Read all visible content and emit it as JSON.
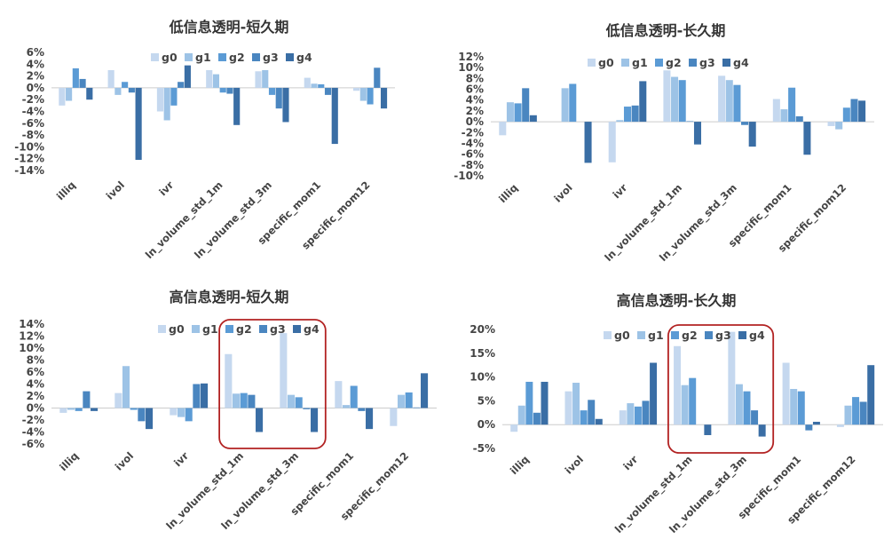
{
  "chart_data": [
    {
      "type": "bar",
      "title": "低信息透明-短久期",
      "categories": [
        "illiq",
        "ivol",
        "ivr",
        "ln_volume_std_1m",
        "ln_volume_std_3m",
        "specific_mom1",
        "specific_mom12"
      ],
      "series": [
        {
          "name": "g0",
          "values": [
            -3.0,
            3.0,
            -4.0,
            3.0,
            2.8,
            1.7,
            -0.5
          ]
        },
        {
          "name": "g1",
          "values": [
            -2.2,
            -1.2,
            -5.5,
            2.3,
            3.0,
            0.7,
            -2.2
          ]
        },
        {
          "name": "g2",
          "values": [
            3.3,
            1.0,
            -3.0,
            -0.8,
            -1.2,
            0.6,
            -2.8
          ]
        },
        {
          "name": "g3",
          "values": [
            1.5,
            -0.8,
            1.0,
            -1.0,
            -3.5,
            -1.2,
            3.4
          ]
        },
        {
          "name": "g4",
          "values": [
            -2.0,
            -12.2,
            3.8,
            -6.3,
            -5.8,
            -9.5,
            -3.5
          ]
        }
      ],
      "ylim": [
        -14,
        6
      ],
      "yticks": [
        6,
        4,
        2,
        0,
        -2,
        -4,
        -6,
        -8,
        -10,
        -12,
        -14
      ],
      "ytick_labels": [
        "6%",
        "4%",
        "2%",
        "0%",
        "-2%",
        "-4%",
        "-6%",
        "-8%",
        "-10%",
        "-12%",
        "-14%"
      ],
      "legend": "top-center"
    },
    {
      "type": "bar",
      "title": "低信息透明-长久期",
      "categories": [
        "illiq",
        "ivol",
        "ivr",
        "ln_volume_std_1m",
        "ln_volume_std_3m",
        "specific_mom1",
        "specific_mom12"
      ],
      "series": [
        {
          "name": "g0",
          "values": [
            -2.5,
            0.0,
            -7.5,
            9.5,
            8.5,
            4.2,
            -0.8
          ]
        },
        {
          "name": "g1",
          "values": [
            3.6,
            6.2,
            0.3,
            8.3,
            7.7,
            2.3,
            -1.4
          ]
        },
        {
          "name": "g2",
          "values": [
            3.4,
            7.0,
            2.8,
            7.7,
            6.8,
            6.3,
            2.6
          ]
        },
        {
          "name": "g3",
          "values": [
            6.2,
            0.0,
            3.0,
            0.1,
            -0.6,
            1.0,
            4.2
          ]
        },
        {
          "name": "g4",
          "values": [
            1.2,
            -7.6,
            7.5,
            -4.2,
            -4.6,
            -6.1,
            3.9
          ]
        }
      ],
      "ylim": [
        -10,
        12
      ],
      "yticks": [
        12,
        10,
        8,
        6,
        4,
        2,
        0,
        -2,
        -4,
        -6,
        -8,
        -10
      ],
      "ytick_labels": [
        "12%",
        "10%",
        "8%",
        "6%",
        "4%",
        "2%",
        "0%",
        "-2%",
        "-4%",
        "-6%",
        "-8%",
        "-10%"
      ],
      "legend": "top-center"
    },
    {
      "type": "bar",
      "title": "高信息透明-短久期",
      "categories": [
        "illiq",
        "ivol",
        "ivr",
        "ln_volume_std_1m",
        "ln_volume_std_3m",
        "specific_mom1",
        "specific_mom12"
      ],
      "series": [
        {
          "name": "g0",
          "values": [
            -0.8,
            2.5,
            -1.2,
            9.0,
            12.5,
            4.5,
            -3.0
          ]
        },
        {
          "name": "g1",
          "values": [
            -0.3,
            7.0,
            -1.5,
            2.4,
            2.2,
            0.5,
            2.2
          ]
        },
        {
          "name": "g2",
          "values": [
            -0.5,
            -0.3,
            -2.2,
            2.5,
            1.8,
            3.7,
            2.6
          ]
        },
        {
          "name": "g3",
          "values": [
            2.8,
            -2.2,
            4.0,
            2.2,
            -0.2,
            -0.5,
            0.1
          ]
        },
        {
          "name": "g4",
          "values": [
            -0.5,
            -3.5,
            4.1,
            -4.0,
            -4.0,
            -3.5,
            5.8
          ]
        }
      ],
      "ylim": [
        -6,
        14
      ],
      "yticks": [
        14,
        12,
        10,
        8,
        6,
        4,
        2,
        0,
        -2,
        -4,
        -6
      ],
      "ytick_labels": [
        "14%",
        "12%",
        "10%",
        "8%",
        "6%",
        "4%",
        "2%",
        "0%",
        "-2%",
        "-4%",
        "-6%"
      ],
      "legend": "top-center",
      "annotation": "red rounded rectangle highlighting ln_volume_std_1m and ln_volume_std_3m"
    },
    {
      "type": "bar",
      "title": "高信息透明-长久期",
      "categories": [
        "illiq",
        "ivol",
        "ivr",
        "ln_volume_std_1m",
        "ln_volume_std_3m",
        "specific_mom1",
        "specific_mom12"
      ],
      "series": [
        {
          "name": "g0",
          "values": [
            -1.5,
            7.0,
            3.0,
            16.5,
            19.5,
            13.0,
            -0.5
          ]
        },
        {
          "name": "g1",
          "values": [
            4.0,
            8.8,
            4.5,
            8.3,
            8.5,
            7.5,
            4.0
          ]
        },
        {
          "name": "g2",
          "values": [
            9.0,
            3.0,
            3.8,
            9.8,
            7.0,
            7.0,
            5.8
          ]
        },
        {
          "name": "g3",
          "values": [
            2.5,
            5.2,
            5.0,
            0.0,
            3.0,
            -1.2,
            4.8
          ]
        },
        {
          "name": "g4",
          "values": [
            9.0,
            1.2,
            13.0,
            -2.2,
            -2.5,
            0.6,
            12.5
          ]
        }
      ],
      "ylim": [
        -5,
        20
      ],
      "yticks": [
        20,
        15,
        10,
        5,
        0,
        -5
      ],
      "ytick_labels": [
        "20%",
        "15%",
        "10%",
        "5%",
        "0%",
        "-5%"
      ],
      "legend": "top-center",
      "annotation": "red rounded rectangle highlighting ln_volume_std_1m and ln_volume_std_3m"
    }
  ],
  "colors": {
    "g0": "#c5d8ef",
    "g1": "#9dc3e6",
    "g2": "#5b9bd5",
    "g3": "#4a86c0",
    "g4": "#3a6ea5",
    "axis": "#cccccc",
    "highlight": "#b22222"
  }
}
